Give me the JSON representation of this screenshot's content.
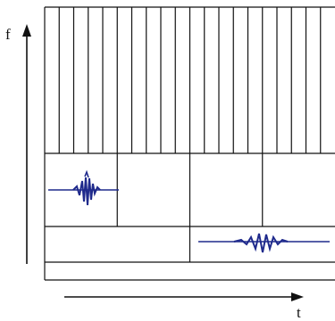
{
  "diagram": {
    "axes": {
      "vertical_label": "f",
      "horizontal_label": "t"
    },
    "tiling": {
      "top_band_columns": 20,
      "middle_band_columns": 4,
      "lower_band_columns": 2,
      "bottom_band_columns": 1
    },
    "wavelets": [
      {
        "name": "wavelet-high-scale",
        "band": "middle",
        "column": 1
      },
      {
        "name": "wavelet-low-scale",
        "band": "lower",
        "column": 2
      }
    ],
    "colors": {
      "grid": "#111111",
      "wavelet": "#1f2a8c",
      "background": "#ffffff"
    }
  }
}
